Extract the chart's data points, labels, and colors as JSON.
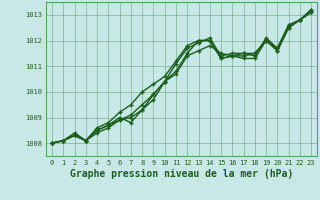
{
  "background_color": "#c8e8e8",
  "plot_bg_color": "#c8e8e8",
  "grid_color": "#5a9e6a",
  "line_color": "#1a5e1a",
  "marker_color": "#1a5e1a",
  "xlabel": "Graphe pression niveau de la mer (hPa)",
  "xlabel_fontsize": 7,
  "xlabel_color": "#1a5e1a",
  "tick_color": "#1a5e1a",
  "xlim": [
    -0.5,
    23.5
  ],
  "ylim": [
    1007.5,
    1013.5
  ],
  "xticks": [
    0,
    1,
    2,
    3,
    4,
    5,
    6,
    7,
    8,
    9,
    10,
    11,
    12,
    13,
    14,
    15,
    16,
    17,
    18,
    19,
    20,
    21,
    22,
    23
  ],
  "yticks": [
    1008,
    1009,
    1010,
    1011,
    1012,
    1013
  ],
  "series": [
    [
      1008.0,
      1008.1,
      1008.3,
      1008.1,
      1008.5,
      1008.7,
      1009.0,
      1008.8,
      1009.3,
      1009.7,
      1010.4,
      1010.8,
      1011.5,
      1012.0,
      1012.0,
      1011.3,
      1011.4,
      1011.4,
      1011.5,
      1012.0,
      1011.6,
      1012.5,
      1012.8,
      1013.2
    ],
    [
      1008.0,
      1008.1,
      1008.3,
      1008.1,
      1008.6,
      1008.8,
      1009.2,
      1009.5,
      1010.0,
      1010.3,
      1010.6,
      1011.2,
      1011.8,
      1012.0,
      1012.0,
      1011.3,
      1011.4,
      1011.3,
      1011.3,
      1012.0,
      1011.7,
      1012.6,
      1012.8,
      1013.2
    ],
    [
      1008.0,
      1008.1,
      1008.4,
      1008.1,
      1008.5,
      1008.7,
      1008.9,
      1009.1,
      1009.5,
      1009.9,
      1010.4,
      1011.1,
      1011.7,
      1011.9,
      1012.1,
      1011.4,
      1011.5,
      1011.5,
      1011.4,
      1012.1,
      1011.7,
      1012.6,
      1012.8,
      1013.1
    ],
    [
      1008.0,
      1008.1,
      1008.3,
      1008.1,
      1008.4,
      1008.6,
      1008.9,
      1009.0,
      1009.3,
      1009.9,
      1010.4,
      1010.7,
      1011.4,
      1011.6,
      1011.8,
      1011.5,
      1011.4,
      1011.5,
      1011.5,
      1012.0,
      1011.6,
      1012.5,
      1012.8,
      1013.1
    ]
  ],
  "marker_size": 3.5,
  "line_width": 1.0
}
